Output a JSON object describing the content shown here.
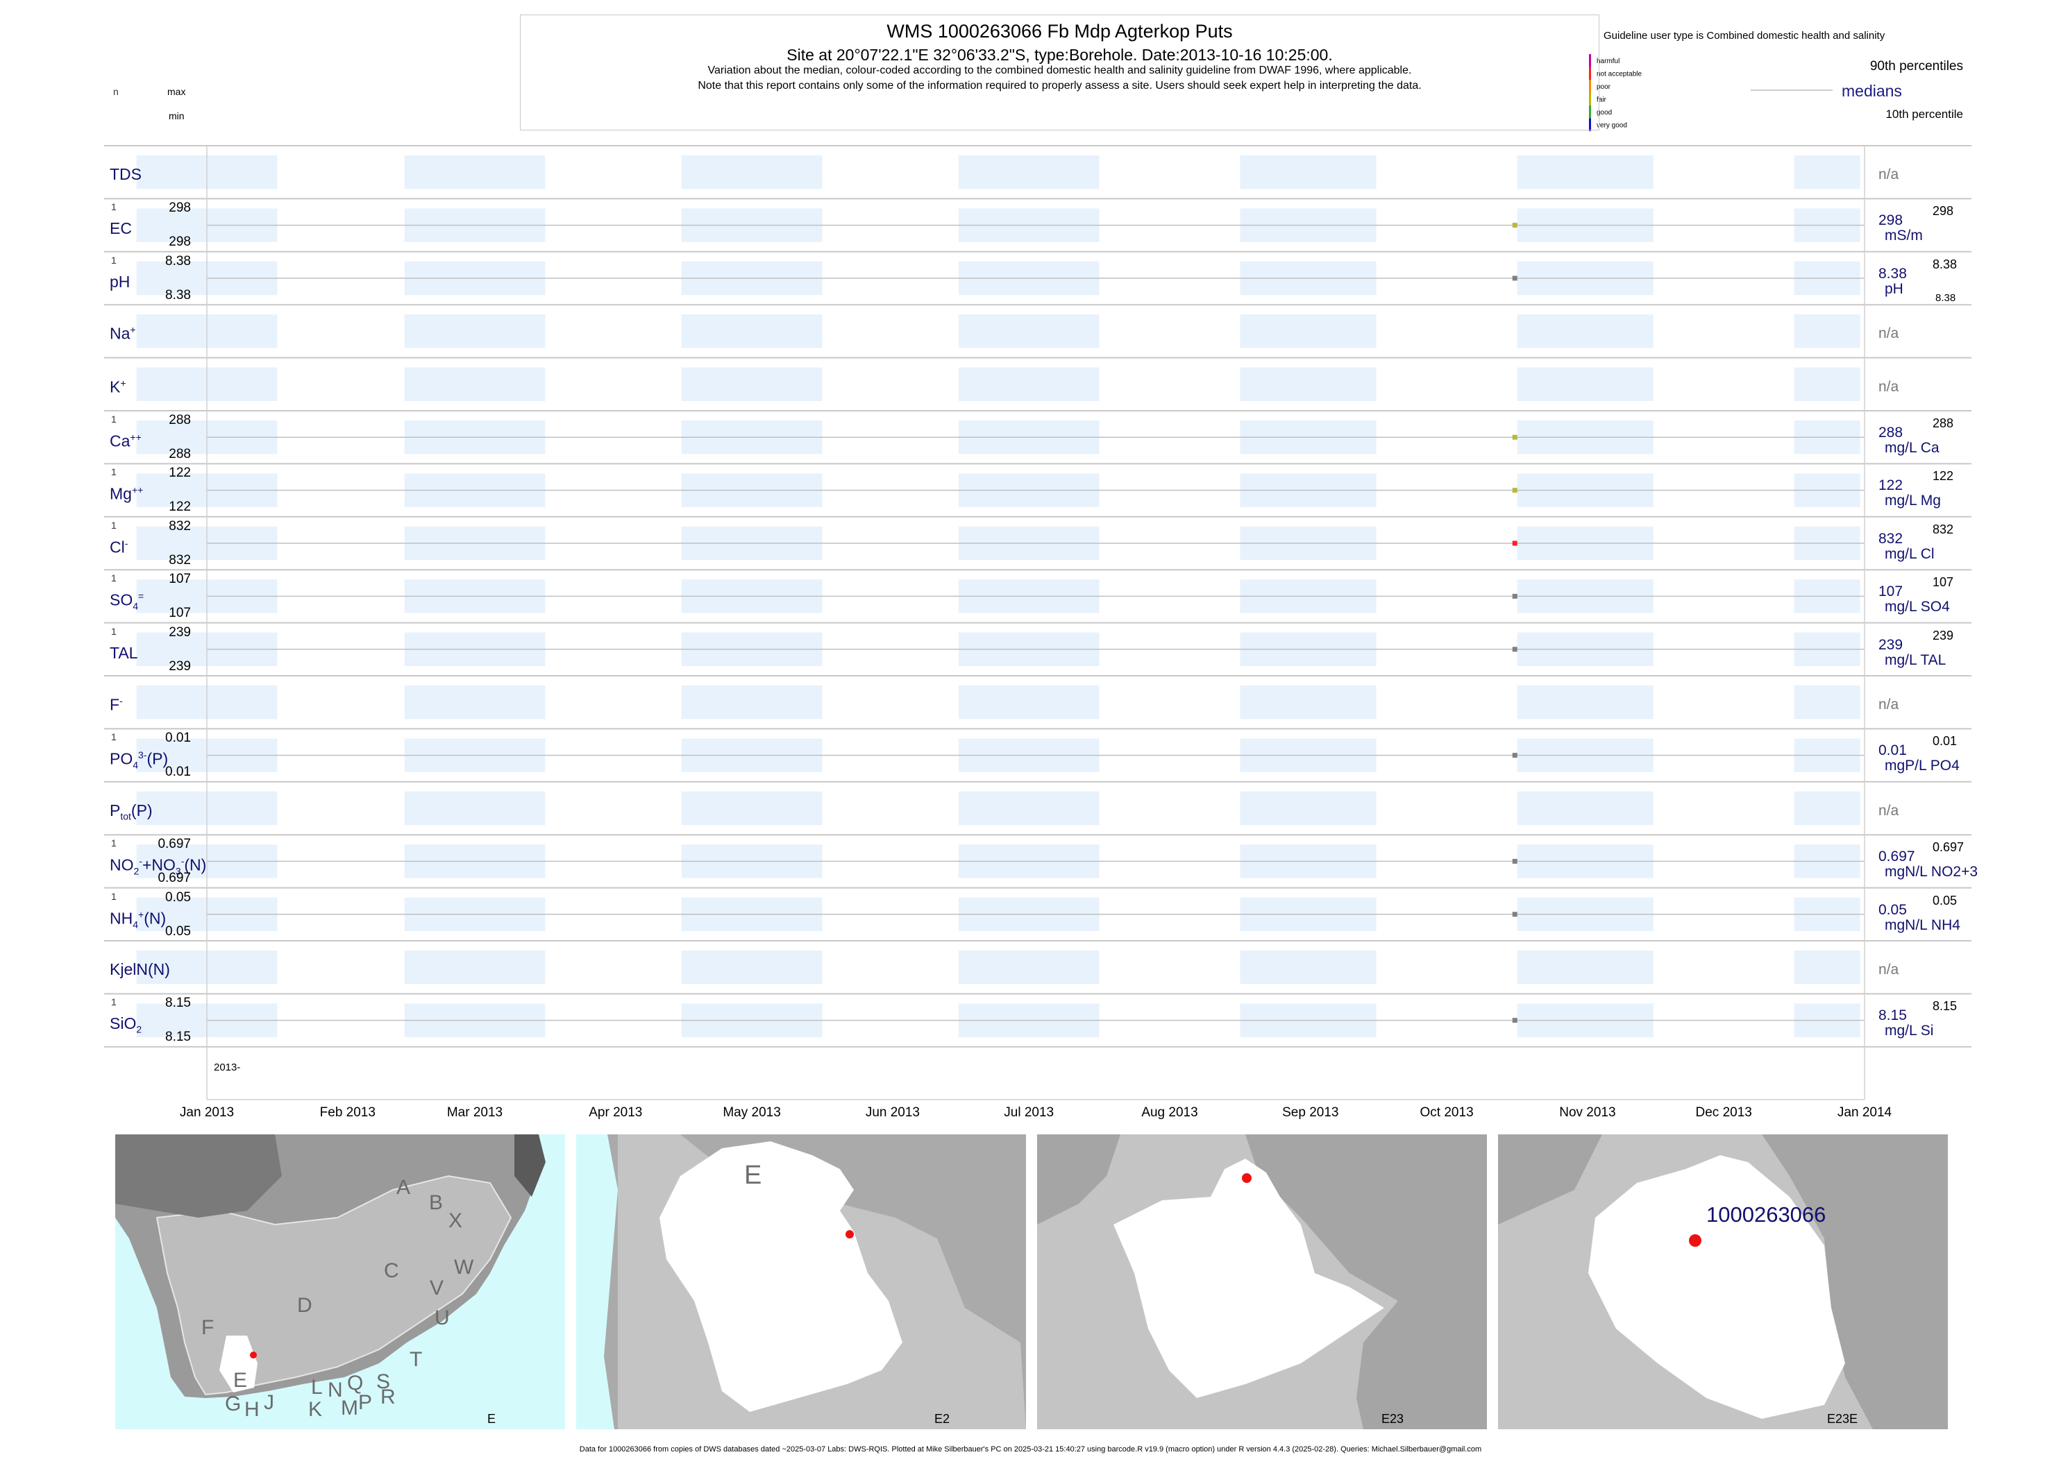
{
  "header": {
    "title": "WMS 1000263066  Fb Mdp Agterkop Puts",
    "site": "Site at 20°07'22.1\"E 32°06'33.2\"S, type:Borehole. Date:2013-10-16 10:25:00.",
    "note1": "Variation about the median,  colour-coded according to the combined domestic health and salinity guideline from DWAF 1996, where applicable.",
    "note2": "Note that this report contains only some of the information required to properly assess a site. Users should seek expert help in interpreting the data."
  },
  "left_key": {
    "n": "n",
    "max": "max",
    "min": "min"
  },
  "guideline": {
    "title": "Guideline user type is Combined domestic health and salinity",
    "classes": [
      {
        "label": "harmful",
        "color": "#cc0099"
      },
      {
        "label": "not acceptable",
        "color": "#ff2222"
      },
      {
        "label": "poor",
        "color": "#ff8800"
      },
      {
        "label": "fair",
        "color": "#b8b800"
      },
      {
        "label": "good",
        "color": "#33aa33"
      },
      {
        "label": "very good",
        "color": "#1010cc"
      }
    ]
  },
  "right_key": {
    "p90": "90th percentiles",
    "medians": "medians",
    "p10": "10th percentile"
  },
  "chart_data": {
    "type": "scatter",
    "x_axis": {
      "range": [
        "2013-01-01",
        "2014-01-01"
      ],
      "start_label": "2013-",
      "ticks": [
        "Jan 2013",
        "Feb 2013",
        "Mar 2013",
        "Apr 2013",
        "May 2013",
        "Jun 2013",
        "Jul 2013",
        "Aug 2013",
        "Sep 2013",
        "Oct 2013",
        "Nov 2013",
        "Dec 2013",
        "Jan 2014"
      ]
    },
    "panels": [
      {
        "id": "tds",
        "name": "TDS",
        "na": "n/a"
      },
      {
        "id": "ec",
        "name": "EC",
        "n": "1",
        "max": "298",
        "min": "298",
        "median": "298",
        "unit": "mS/m",
        "p90": "298",
        "date": "2013-10-16",
        "value": 298,
        "color": "#b8b840"
      },
      {
        "id": "ph",
        "name": "pH",
        "n": "1",
        "max": "8.38",
        "min": "8.38",
        "median": "8.38",
        "unit": "pH",
        "p90": "8.38",
        "p10": "8.38",
        "date": "2013-10-16",
        "value": 8.38,
        "color": "#808080"
      },
      {
        "id": "na",
        "name": "Na",
        "sup": "+",
        "na": "n/a"
      },
      {
        "id": "k",
        "name": "K",
        "sup": "+",
        "na": "n/a"
      },
      {
        "id": "ca",
        "name": "Ca",
        "sup": "++",
        "n": "1",
        "max": "288",
        "min": "288",
        "median": "288",
        "unit": "mg/L Ca",
        "p90": "288",
        "date": "2013-10-16",
        "value": 288,
        "color": "#b8b840"
      },
      {
        "id": "mg",
        "name": "Mg",
        "sup": "++",
        "n": "1",
        "max": "122",
        "min": "122",
        "median": "122",
        "unit": "mg/L Mg",
        "p90": "122",
        "date": "2013-10-16",
        "value": 122,
        "color": "#b8b840"
      },
      {
        "id": "cl",
        "name": "Cl",
        "sup": "-",
        "n": "1",
        "max": "832",
        "min": "832",
        "median": "832",
        "unit": "mg/L Cl",
        "p90": "832",
        "date": "2013-10-16",
        "value": 832,
        "color": "#ff2222"
      },
      {
        "id": "so4",
        "name": "SO",
        "sub": "4",
        "sup": "=",
        "n": "1",
        "max": "107",
        "min": "107",
        "median": "107",
        "unit": "mg/L SO4",
        "p90": "107",
        "date": "2013-10-16",
        "value": 107,
        "color": "#808080"
      },
      {
        "id": "tal",
        "name": "TAL",
        "n": "1",
        "max": "239",
        "min": "239",
        "median": "239",
        "unit": "mg/L TAL",
        "p90": "239",
        "date": "2013-10-16",
        "value": 239,
        "color": "#808080"
      },
      {
        "id": "f",
        "name": "F",
        "sup": "-",
        "na": "n/a"
      },
      {
        "id": "po4",
        "name": "PO",
        "sub": "4",
        "sup": "3-",
        "suffix": "(P)",
        "n": "1",
        "max": "0.01",
        "min": "0.01",
        "median": "0.01",
        "unit": "mgP/L PO4",
        "p90": "0.01",
        "date": "2013-10-16",
        "value": 0.01,
        "color": "#808080"
      },
      {
        "id": "ptot",
        "name": "P",
        "sub": "tot",
        "suffix": "(P)",
        "na": "n/a"
      },
      {
        "id": "nox",
        "name": "NO",
        "sub": "2",
        "sup": "-",
        "name2": "+NO",
        "sub2": "3",
        "sup2": "-",
        "suffix": "(N)",
        "n": "1",
        "max": "0.697",
        "min": "0.697",
        "median": "0.697",
        "unit": "mgN/L NO2+3",
        "p90": "0.697",
        "date": "2013-10-16",
        "value": 0.697,
        "color": "#808080"
      },
      {
        "id": "nh4",
        "name": "NH",
        "sub": "4",
        "sup": "+",
        "suffix": "(N)",
        "n": "1",
        "max": "0.05",
        "min": "0.05",
        "median": "0.05",
        "unit": "mgN/L NH4",
        "p90": "0.05",
        "date": "2013-10-16",
        "value": 0.05,
        "color": "#808080"
      },
      {
        "id": "kjel",
        "name": "KjelN(N)",
        "na": "n/a"
      },
      {
        "id": "sio2",
        "name": "SiO",
        "sub": "2",
        "n": "1",
        "max": "8.15",
        "min": "8.15",
        "median": "8.15",
        "unit": "mg/L Si",
        "p90": "8.15",
        "date": "2013-10-16",
        "value": 8.15,
        "color": "#808080"
      }
    ]
  },
  "maps": [
    {
      "id": "E",
      "label": "E",
      "regions": [
        "A",
        "B",
        "X",
        "W",
        "C",
        "V",
        "D",
        "U",
        "T",
        "F",
        "E",
        "G",
        "H",
        "J",
        "K",
        "L",
        "N",
        "M",
        "Q",
        "P",
        "S",
        "R"
      ]
    },
    {
      "id": "E2",
      "label": "E2",
      "letter": "E"
    },
    {
      "id": "E23",
      "label": "E23"
    },
    {
      "id": "E23E",
      "label": "E23E",
      "site": "1000263066"
    }
  ],
  "footer": "Data for 1000263066 from copies of DWS databases dated ~2025-03-07 Labs: DWS-RQIS. Plotted at Mike Silberbauer's PC on 2025-03-21 15:40:27 using barcode.R v19.9 (macro option) under R version 4.4.3 (2025-02-28). Queries: Michael.Silberbauer@gmail.com"
}
